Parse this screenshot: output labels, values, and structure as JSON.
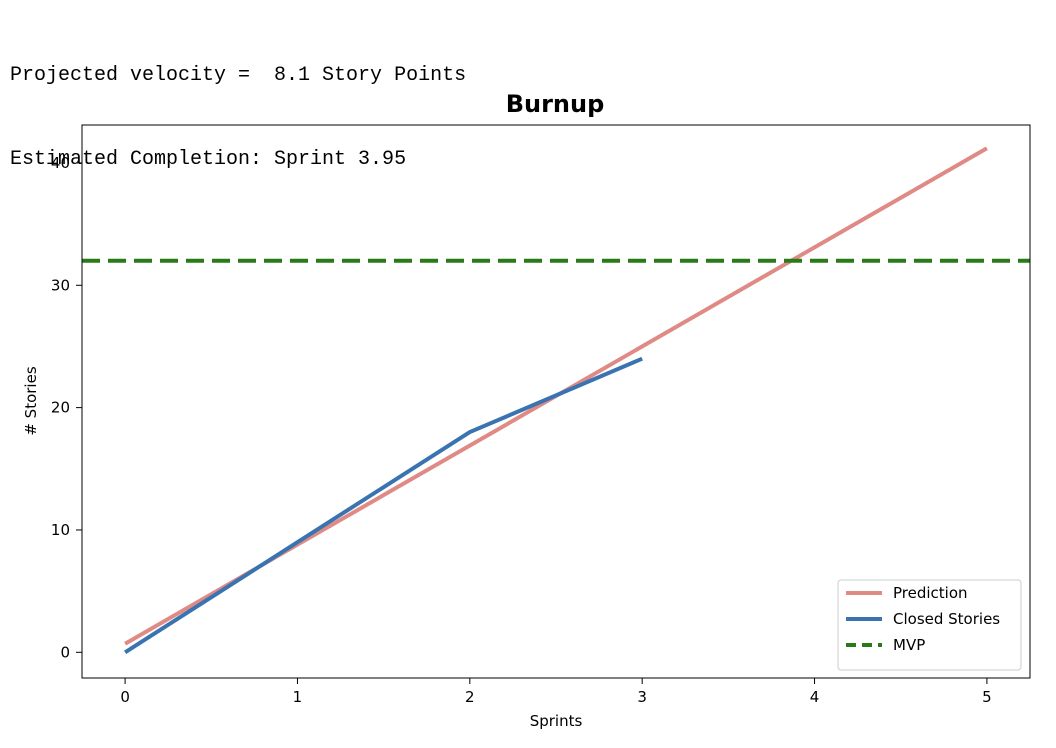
{
  "output": {
    "lines": [
      "Projected velocity =  8.1 Story Points",
      "Estimated Completion: Sprint 3.95"
    ]
  },
  "chart_data": {
    "type": "line",
    "title": "Burnup",
    "xlabel": "Sprints",
    "ylabel": "# Stories",
    "xlim": [
      -0.25,
      5.25
    ],
    "ylim": [
      -2.1,
      43.1
    ],
    "xticks": [
      0,
      1,
      2,
      3,
      4,
      5
    ],
    "yticks": [
      0,
      10,
      20,
      30,
      40
    ],
    "grid": false,
    "legend_position": "lower right",
    "series": [
      {
        "name": "Prediction",
        "color": "#e08a86",
        "style": "solid",
        "x": [
          0,
          5
        ],
        "y": [
          0.7,
          41.2
        ]
      },
      {
        "name": "Closed Stories",
        "color": "#3a74b0",
        "style": "solid",
        "x": [
          0,
          1,
          2,
          3
        ],
        "y": [
          0,
          9,
          18,
          24
        ]
      },
      {
        "name": "MVP",
        "color": "#2a7a1a",
        "style": "dashed",
        "type": "hline",
        "y": 32
      }
    ]
  }
}
